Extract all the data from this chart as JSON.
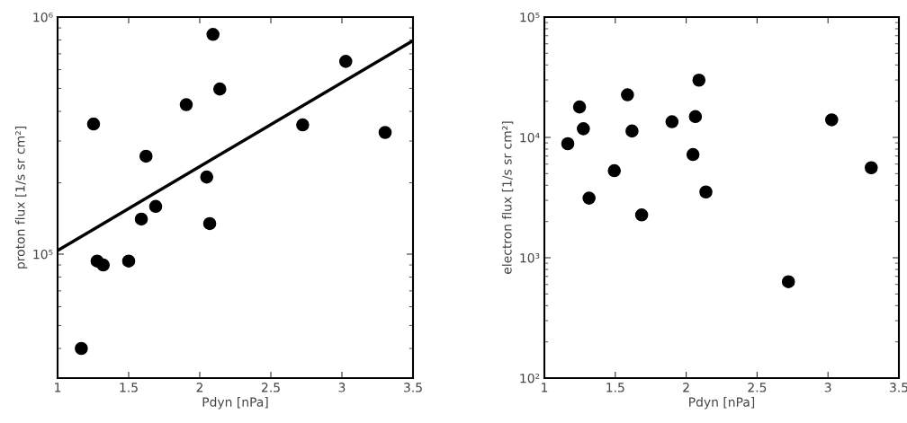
{
  "chart_data": [
    {
      "type": "scatter",
      "xlabel": "Pdyn [nPa]",
      "ylabel": "proton flux [1/s sr cm²]",
      "log": "y",
      "grid": false,
      "marker": "circle",
      "xlim": [
        1,
        3.5
      ],
      "xticks": [
        1,
        1.5,
        2,
        2.5,
        3,
        3.5
      ],
      "ylim": [
        30000,
        1000000
      ],
      "yticks": [
        {
          "value": 100000,
          "label": "10⁵"
        },
        {
          "value": 1000000,
          "label": "10⁶"
        }
      ],
      "series": [
        {
          "color": "#000000",
          "x": [
            1.167,
            1.253,
            1.278,
            1.321,
            1.5,
            1.589,
            1.622,
            1.69,
            1.905,
            2.049,
            2.07,
            2.093,
            2.141,
            2.724,
            3.027,
            3.304
          ],
          "values": [
            40000,
            354000,
            93500,
            90000,
            93500,
            140600,
            258800,
            159000,
            427000,
            211500,
            134600,
            845000,
            497000,
            351000,
            650000,
            326000
          ]
        },
        {
          "type": "line",
          "color": "#000000",
          "marker": "none",
          "x": [
            1,
            3.5
          ],
          "values": [
            103500,
            796000
          ]
        }
      ]
    },
    {
      "type": "scatter",
      "xlabel": "Pdyn [nPa]",
      "ylabel": "electron flux [1/s sr cm²]",
      "log": "y",
      "grid": false,
      "marker": "circle",
      "xlim": [
        1,
        3.5
      ],
      "xticks": [
        1,
        1.5,
        2,
        2.5,
        3,
        3.5
      ],
      "ylim": [
        100,
        100000
      ],
      "yticks": [
        {
          "value": 100,
          "label": "10²"
        },
        {
          "value": 1000,
          "label": "10³"
        },
        {
          "value": 10000,
          "label": "10⁴"
        },
        {
          "value": 100000,
          "label": "10⁵"
        }
      ],
      "series": [
        {
          "color": "#000000",
          "x": [
            1.165,
            1.248,
            1.275,
            1.315,
            1.493,
            1.586,
            1.618,
            1.686,
            1.9,
            2.048,
            2.065,
            2.09,
            2.139,
            2.721,
            3.026,
            3.305
          ],
          "values": [
            8870,
            17900,
            11800,
            3130,
            5290,
            22600,
            11300,
            2270,
            13500,
            7210,
            14900,
            29900,
            3520,
            632,
            14000,
            5600
          ]
        }
      ]
    }
  ]
}
